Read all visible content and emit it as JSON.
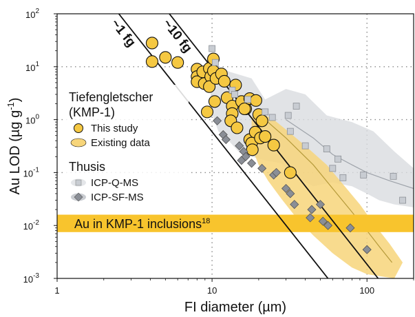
{
  "chart_data": {
    "type": "scatter",
    "xlabel": "FI diameter (µm)",
    "ylabel_base": "Au LOD (µg g",
    "ylabel_exp": "-1",
    "ylabel_close": ")",
    "x_scale": "log",
    "y_scale": "log",
    "xlim": [
      1,
      200
    ],
    "ylim": [
      0.001,
      100
    ],
    "x_ticks": [
      {
        "value": 1,
        "label": "1"
      },
      {
        "value": 10,
        "label": "10"
      },
      {
        "value": 100,
        "label": "100"
      }
    ],
    "y_ticks": [
      {
        "value": 0.001,
        "base": "10",
        "exp": "-3"
      },
      {
        "value": 0.01,
        "base": "10",
        "exp": "-2"
      },
      {
        "value": 0.1,
        "base": "10",
        "exp": "-1"
      },
      {
        "value": 1,
        "base": "10",
        "exp": "0"
      },
      {
        "value": 10,
        "base": "10",
        "exp": "1"
      },
      {
        "value": 100,
        "base": "10",
        "exp": "2"
      }
    ],
    "grid": "dotted",
    "colors": {
      "this_study": "#f5c842",
      "existing_band": "#f7d57a",
      "icpq": "#c8ccd2",
      "icpsf": "#8a8e96",
      "grey_band": "#d9dce0",
      "au_band": "#f8c42d"
    },
    "reference_lines": [
      {
        "label": "~1 fg",
        "points": [
          [
            2.5,
            100
          ],
          [
            56,
            0.001
          ]
        ]
      },
      {
        "label": "~10 fg",
        "points": [
          [
            5.3,
            100
          ],
          [
            118,
            0.001
          ]
        ]
      }
    ],
    "hband": {
      "label": "Au in KMP-1 inclusions",
      "superscript": "18",
      "y_range": [
        0.0075,
        0.016
      ]
    },
    "legend": {
      "group1_title_line1": "Tiefengletscher",
      "group1_title_line2": "(KMP-1)",
      "this_study": "This study",
      "existing": "Existing data",
      "group2_title": "Thusis",
      "icpq": "ICP-Q-MS",
      "icpsf": "ICP-SF-MS"
    },
    "series": [
      {
        "name": "This study",
        "marker": "circle",
        "points": [
          [
            4.1,
            28
          ],
          [
            4.1,
            12.5
          ],
          [
            5.0,
            15
          ],
          [
            6.0,
            12
          ],
          [
            8.0,
            9
          ],
          [
            8.0,
            6.5
          ],
          [
            8.0,
            5.2
          ],
          [
            8.7,
            8.0
          ],
          [
            8.9,
            4.8
          ],
          [
            9.3,
            1.4
          ],
          [
            9.6,
            9.3
          ],
          [
            9.8,
            6.5
          ],
          [
            9.6,
            4.2
          ],
          [
            10.2,
            14
          ],
          [
            10.2,
            8.3
          ],
          [
            10.6,
            6.0
          ],
          [
            10.4,
            2.2
          ],
          [
            11.5,
            7.3
          ],
          [
            12.0,
            5.3
          ],
          [
            12.5,
            2.6
          ],
          [
            13.5,
            1.8
          ],
          [
            14.2,
            4.5
          ],
          [
            13.5,
            1.3
          ],
          [
            13.2,
            0.95
          ],
          [
            14.5,
            0.7
          ],
          [
            16.5,
            1.6
          ],
          [
            15.5,
            2.2
          ],
          [
            16.2,
            1.6
          ],
          [
            17.5,
            2.5
          ],
          [
            17.5,
            0.42
          ],
          [
            19.0,
            0.58
          ],
          [
            18.0,
            0.36
          ],
          [
            18.2,
            0.27
          ],
          [
            19.2,
            2.3
          ],
          [
            20.0,
            1.25
          ],
          [
            20.5,
            0.45
          ],
          [
            21.0,
            0.95
          ],
          [
            22.0,
            0.48
          ],
          [
            25.0,
            0.33
          ],
          [
            32.0,
            0.1
          ]
        ]
      },
      {
        "name": "ICP-Q-MS",
        "marker": "square",
        "points": [
          [
            10.0,
            22
          ],
          [
            10.5,
            12
          ],
          [
            13.5,
            3.6
          ],
          [
            14.0,
            3.0
          ],
          [
            17.0,
            2.4
          ],
          [
            22.0,
            1.4
          ],
          [
            24.5,
            1.1
          ],
          [
            31.0,
            1.2
          ],
          [
            35.0,
            1.8
          ],
          [
            32.0,
            0.6
          ],
          [
            40.0,
            0.32
          ],
          [
            55.0,
            0.28
          ],
          [
            60.0,
            0.12
          ],
          [
            65.0,
            0.18
          ],
          [
            70.0,
            0.08
          ],
          [
            95.0,
            0.09
          ],
          [
            148.0,
            0.085
          ],
          [
            170.0,
            0.03
          ]
        ]
      },
      {
        "name": "ICP-SF-MS",
        "marker": "diamond",
        "points": [
          [
            10.8,
            0.95
          ],
          [
            11.8,
            0.52
          ],
          [
            12.3,
            0.42
          ],
          [
            15.0,
            0.32
          ],
          [
            16.0,
            0.25
          ],
          [
            15.5,
            0.17
          ],
          [
            16.5,
            0.2
          ],
          [
            18.0,
            0.15
          ],
          [
            21.0,
            0.12
          ],
          [
            25.0,
            0.09
          ],
          [
            26.0,
            0.1
          ],
          [
            30.0,
            0.05
          ],
          [
            32.0,
            0.04
          ],
          [
            34.0,
            0.025
          ],
          [
            44.0,
            0.02
          ],
          [
            43.0,
            0.014
          ],
          [
            50.0,
            0.025
          ],
          [
            52.0,
            0.012
          ],
          [
            56.0,
            0.01
          ],
          [
            78.0,
            0.009
          ],
          [
            100.0,
            0.0035
          ]
        ]
      }
    ],
    "bands": {
      "grey_upper": [
        [
          9.8,
          3.5
        ],
        [
          11,
          10
        ],
        [
          13,
          8
        ],
        [
          18,
          6
        ],
        [
          22,
          2.4
        ],
        [
          30,
          3.8
        ],
        [
          40,
          3.0
        ],
        [
          55,
          1.2
        ],
        [
          80,
          0.9
        ],
        [
          110,
          0.6
        ],
        [
          150,
          0.25
        ],
        [
          200,
          0.12
        ]
      ],
      "grey_lower": [
        [
          200,
          0.022
        ],
        [
          150,
          0.025
        ],
        [
          120,
          0.03
        ],
        [
          100,
          0.04
        ],
        [
          80,
          0.055
        ],
        [
          60,
          0.065
        ],
        [
          45,
          0.055
        ],
        [
          35,
          0.08
        ],
        [
          28,
          0.15
        ],
        [
          22,
          0.17
        ],
        [
          18,
          0.2
        ],
        [
          15,
          0.24
        ],
        [
          13,
          0.38
        ],
        [
          11,
          0.6
        ],
        [
          9.8,
          1.5
        ]
      ],
      "yellow_upper": [
        [
          18,
          1.1
        ],
        [
          21,
          1.3
        ],
        [
          25,
          1.0
        ],
        [
          30,
          0.65
        ],
        [
          40,
          0.32
        ],
        [
          55,
          0.14
        ],
        [
          70,
          0.06
        ],
        [
          90,
          0.025
        ],
        [
          110,
          0.011
        ],
        [
          140,
          0.0045
        ],
        [
          170,
          0.002
        ]
      ],
      "yellow_lower": [
        [
          150,
          0.001
        ],
        [
          100,
          0.0012
        ],
        [
          80,
          0.0016
        ],
        [
          60,
          0.003
        ],
        [
          45,
          0.0065
        ],
        [
          35,
          0.014
        ],
        [
          28,
          0.032
        ],
        [
          23,
          0.07
        ],
        [
          20,
          0.14
        ],
        [
          18,
          0.3
        ]
      ],
      "yellow_midline": [
        [
          22,
          1.0
        ],
        [
          30,
          0.45
        ],
        [
          45,
          0.14
        ],
        [
          60,
          0.05
        ],
        [
          80,
          0.018
        ],
        [
          100,
          0.008
        ],
        [
          120,
          0.004
        ],
        [
          145,
          0.002
        ]
      ],
      "grey_midline": [
        [
          30,
          1.0
        ],
        [
          45,
          0.45
        ],
        [
          60,
          0.22
        ],
        [
          80,
          0.14
        ],
        [
          100,
          0.1
        ],
        [
          140,
          0.07
        ],
        [
          200,
          0.05
        ]
      ]
    }
  }
}
